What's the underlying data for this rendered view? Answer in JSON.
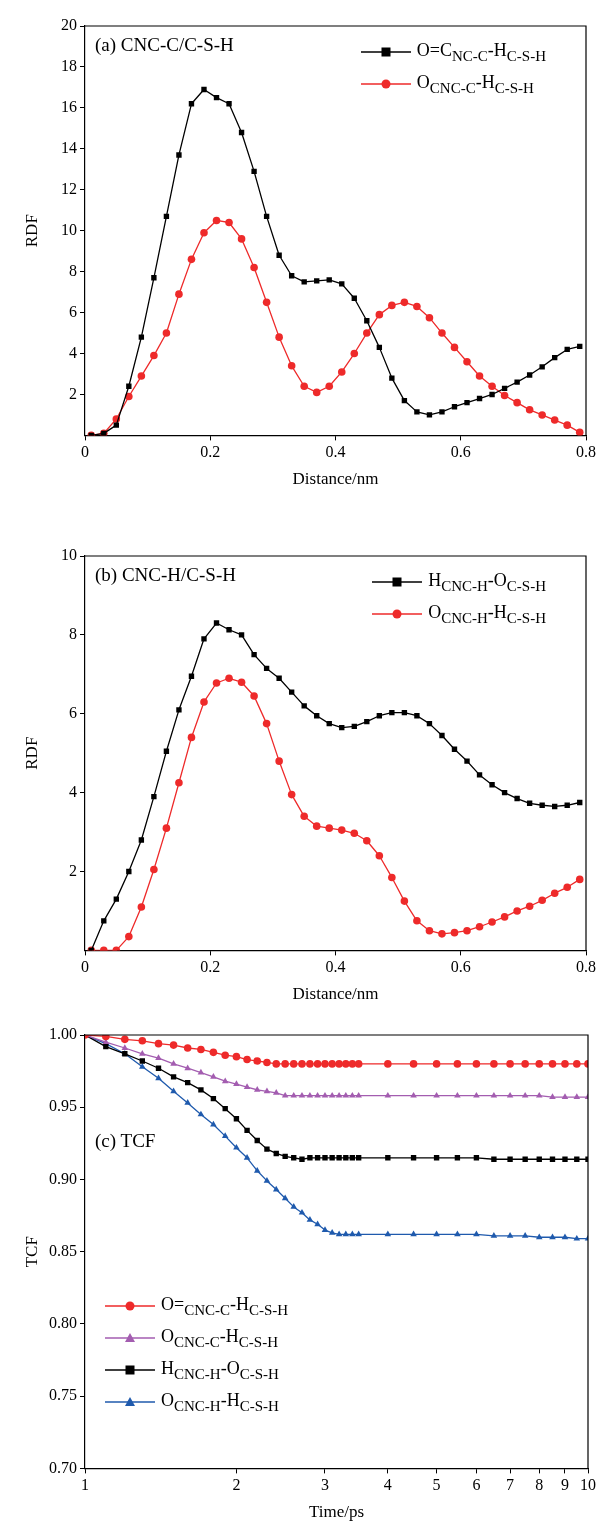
{
  "chart_data": [
    {
      "type": "line",
      "title": "(a) CNC-C/C-S-H",
      "xlabel": "Distance/nm",
      "ylabel": "RDF",
      "xlim": [
        0,
        0.8
      ],
      "xticks": [
        0,
        0.2,
        0.4,
        0.6,
        0.8
      ],
      "ylim": [
        0,
        20
      ],
      "yticks": [
        2,
        4,
        6,
        8,
        10,
        12,
        14,
        16,
        18,
        20
      ],
      "grid": false,
      "legend": "top right",
      "line_style": "solid",
      "x": [
        0.01,
        0.03,
        0.05,
        0.07,
        0.09,
        0.11,
        0.13,
        0.15,
        0.17,
        0.19,
        0.21,
        0.23,
        0.25,
        0.27,
        0.29,
        0.31,
        0.33,
        0.35,
        0.37,
        0.39,
        0.41,
        0.43,
        0.45,
        0.47,
        0.49,
        0.51,
        0.53,
        0.55,
        0.57,
        0.59,
        0.61,
        0.63,
        0.65,
        0.67,
        0.69,
        0.71,
        0.73,
        0.75,
        0.77,
        0.79
      ],
      "series": [
        {
          "name": "O=C$_{NC-C}$-H$_{C-S-H}$",
          "color": "#000000",
          "marker": "square",
          "values": [
            0,
            0.1,
            0.5,
            2.4,
            4.8,
            7.7,
            10.7,
            13.7,
            16.2,
            16.9,
            16.5,
            16.2,
            14.8,
            12.9,
            10.7,
            8.8,
            7.8,
            7.5,
            7.55,
            7.6,
            7.4,
            6.7,
            5.6,
            4.3,
            2.8,
            1.7,
            1.15,
            1.0,
            1.15,
            1.4,
            1.6,
            1.8,
            2.0,
            2.3,
            2.6,
            2.95,
            3.35,
            3.8,
            4.2,
            4.35
          ]
        },
        {
          "name": "O$_{CNC-C}$-H$_{C-S-H}$",
          "color": "#ee2a2a",
          "marker": "circle",
          "values": [
            0,
            0.1,
            0.8,
            1.9,
            2.9,
            3.9,
            5.0,
            6.9,
            8.6,
            9.9,
            10.5,
            10.4,
            9.6,
            8.2,
            6.5,
            4.8,
            3.4,
            2.4,
            2.1,
            2.4,
            3.1,
            4.0,
            5.0,
            5.9,
            6.35,
            6.5,
            6.3,
            5.75,
            5.0,
            4.3,
            3.6,
            2.9,
            2.4,
            1.95,
            1.6,
            1.25,
            1.0,
            0.75,
            0.5,
            0.15
          ]
        }
      ]
    },
    {
      "type": "line",
      "title": "(b) CNC-H/C-S-H",
      "xlabel": "Distance/nm",
      "ylabel": "RDF",
      "xlim": [
        0,
        0.8
      ],
      "xticks": [
        0,
        0.2,
        0.4,
        0.6,
        0.8
      ],
      "ylim": [
        0,
        10
      ],
      "yticks": [
        2,
        4,
        6,
        8,
        10
      ],
      "grid": false,
      "legend": "top right",
      "line_style": "solid",
      "x": [
        0.01,
        0.03,
        0.05,
        0.07,
        0.09,
        0.11,
        0.13,
        0.15,
        0.17,
        0.19,
        0.21,
        0.23,
        0.25,
        0.27,
        0.29,
        0.31,
        0.33,
        0.35,
        0.37,
        0.39,
        0.41,
        0.43,
        0.45,
        0.47,
        0.49,
        0.51,
        0.53,
        0.55,
        0.57,
        0.59,
        0.61,
        0.63,
        0.65,
        0.67,
        0.69,
        0.71,
        0.73,
        0.75,
        0.77,
        0.79
      ],
      "series": [
        {
          "name": "H$_{CNC-H}$-O$_{C-S-H}$",
          "color": "#000000",
          "marker": "square",
          "values": [
            0,
            0.75,
            1.3,
            2.0,
            2.8,
            3.9,
            5.05,
            6.1,
            6.95,
            7.9,
            8.3,
            8.13,
            8.0,
            7.5,
            7.15,
            6.9,
            6.55,
            6.2,
            5.95,
            5.75,
            5.65,
            5.68,
            5.8,
            5.95,
            6.03,
            6.03,
            5.95,
            5.75,
            5.45,
            5.1,
            4.8,
            4.45,
            4.2,
            4.0,
            3.85,
            3.73,
            3.68,
            3.65,
            3.68,
            3.75
          ]
        },
        {
          "name": "O$_{CNC-H}$-H$_{C-S-H}$",
          "color": "#ee2a2a",
          "marker": "circle",
          "values": [
            0,
            0,
            0,
            0.35,
            1.1,
            2.05,
            3.1,
            4.25,
            5.4,
            6.3,
            6.78,
            6.9,
            6.8,
            6.45,
            5.75,
            4.8,
            3.95,
            3.4,
            3.15,
            3.1,
            3.05,
            2.97,
            2.78,
            2.4,
            1.85,
            1.25,
            0.75,
            0.5,
            0.42,
            0.45,
            0.5,
            0.6,
            0.72,
            0.85,
            1.0,
            1.12,
            1.27,
            1.45,
            1.6,
            1.8
          ]
        }
      ]
    },
    {
      "type": "line",
      "title": "(c) TCF",
      "xlabel": "Time/ps",
      "ylabel": "TCF",
      "log": "x",
      "xlim": [
        1,
        10
      ],
      "xticks": [
        1,
        2,
        3,
        4,
        5,
        6,
        7,
        8,
        9,
        10
      ],
      "ylim": [
        0.7,
        1.0
      ],
      "yticks": [
        {
          "value": 0.7,
          "label": "0.70"
        },
        {
          "value": 0.75,
          "label": "0.75"
        },
        {
          "value": 0.8,
          "label": "0.80"
        },
        {
          "value": 0.85,
          "label": "0.85"
        },
        {
          "value": 0.9,
          "label": "0.90"
        },
        {
          "value": 0.95,
          "label": "0.95"
        },
        {
          "value": 1.0,
          "label": "1.00"
        }
      ],
      "grid": false,
      "legend": "bottom left",
      "line_style": "solid",
      "x": [
        1,
        1.1,
        1.2,
        1.3,
        1.4,
        1.5,
        1.6,
        1.7,
        1.8,
        1.9,
        2,
        2.1,
        2.2,
        2.3,
        2.4,
        2.5,
        2.6,
        2.7,
        2.8,
        2.9,
        3,
        3.1,
        3.2,
        3.3,
        3.4,
        3.5,
        4,
        4.5,
        5,
        5.5,
        6,
        6.5,
        7,
        7.5,
        8,
        8.5,
        9,
        9.5,
        10
      ],
      "series": [
        {
          "name": "O=$_{CNC-C}$-H$_{C-S-H}$",
          "color": "#ee2a2a",
          "marker": "circle",
          "values": [
            1,
            0.999,
            0.997,
            0.996,
            0.994,
            0.993,
            0.991,
            0.99,
            0.988,
            0.986,
            0.985,
            0.983,
            0.982,
            0.981,
            0.98,
            0.98,
            0.98,
            0.98,
            0.98,
            0.98,
            0.98,
            0.98,
            0.98,
            0.98,
            0.98,
            0.98,
            0.98,
            0.98,
            0.98,
            0.98,
            0.98,
            0.98,
            0.98,
            0.98,
            0.98,
            0.98,
            0.98,
            0.98,
            0.98
          ]
        },
        {
          "name": "O$_{CNC-C}$-H$_{C-S-H}$",
          "color": "#a35db0",
          "marker": "triangle",
          "values": [
            1,
            0.995,
            0.991,
            0.987,
            0.984,
            0.98,
            0.977,
            0.974,
            0.971,
            0.968,
            0.966,
            0.964,
            0.962,
            0.961,
            0.96,
            0.958,
            0.958,
            0.958,
            0.958,
            0.958,
            0.958,
            0.958,
            0.958,
            0.958,
            0.958,
            0.958,
            0.958,
            0.958,
            0.958,
            0.958,
            0.958,
            0.958,
            0.958,
            0.958,
            0.958,
            0.957,
            0.957,
            0.957,
            0.957
          ]
        },
        {
          "name": "H$_{CNC-H}$-O$_{C-S-H}$",
          "color": "#000000",
          "marker": "square",
          "values": [
            1,
            0.992,
            0.987,
            0.982,
            0.977,
            0.971,
            0.967,
            0.962,
            0.956,
            0.949,
            0.942,
            0.934,
            0.927,
            0.921,
            0.918,
            0.916,
            0.915,
            0.914,
            0.915,
            0.915,
            0.915,
            0.915,
            0.915,
            0.915,
            0.915,
            0.915,
            0.915,
            0.915,
            0.915,
            0.915,
            0.915,
            0.914,
            0.914,
            0.914,
            0.914,
            0.914,
            0.914,
            0.914,
            0.914
          ]
        },
        {
          "name": "O$_{CNC-H}$-H$_{C-S-H}$",
          "color": "#1f5aad",
          "marker": "triangle",
          "values": [
            1,
            0.994,
            0.987,
            0.978,
            0.97,
            0.961,
            0.953,
            0.945,
            0.938,
            0.93,
            0.922,
            0.915,
            0.906,
            0.899,
            0.893,
            0.887,
            0.881,
            0.877,
            0.872,
            0.869,
            0.865,
            0.863,
            0.862,
            0.862,
            0.862,
            0.862,
            0.862,
            0.862,
            0.862,
            0.862,
            0.862,
            0.861,
            0.861,
            0.861,
            0.86,
            0.86,
            0.86,
            0.859,
            0.859
          ]
        }
      ]
    }
  ]
}
